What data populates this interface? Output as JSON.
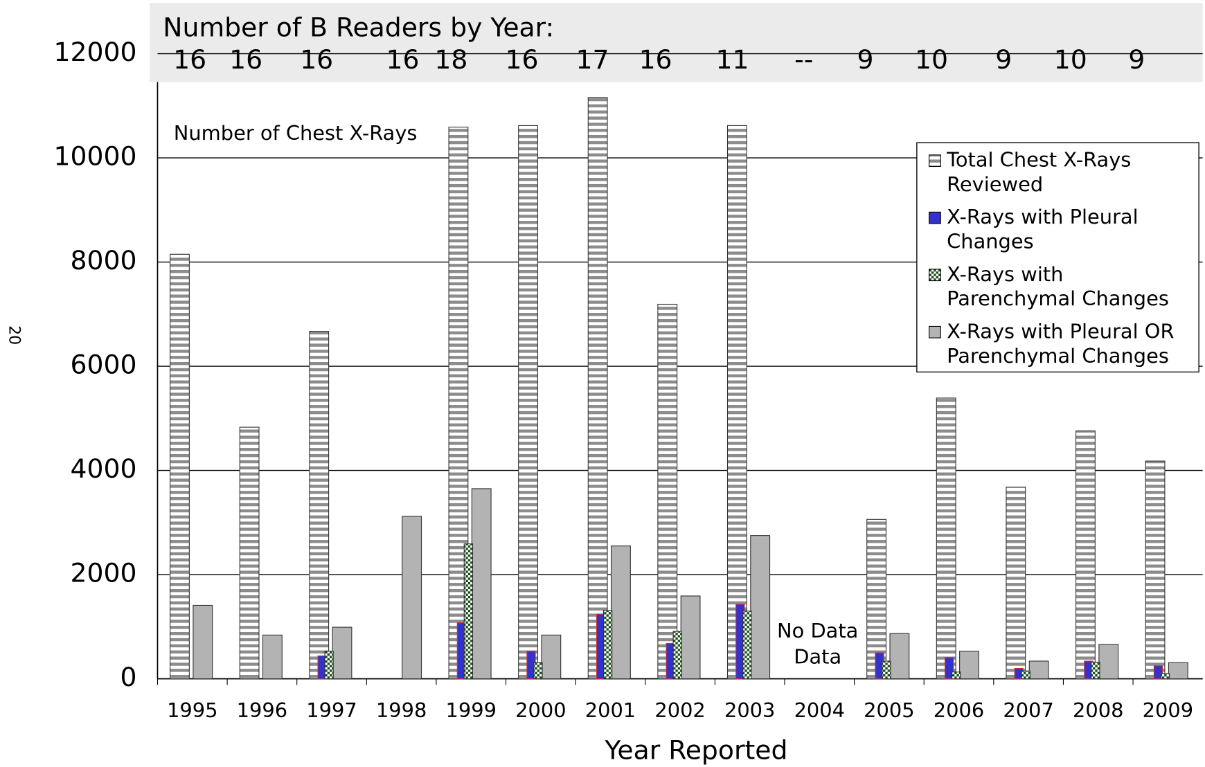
{
  "chart_data": {
    "type": "bar",
    "title": "Number of B Readers by Year:",
    "readers_labels": [
      "16",
      "16",
      "16",
      "16",
      "18",
      "16",
      "17",
      "16",
      "11",
      "--",
      "9",
      "10",
      "9",
      "10",
      "9"
    ],
    "annotations": [
      "Number of Chest X-Rays",
      "No Data",
      "20"
    ],
    "x_label": "Year Reported",
    "categories": [
      "1995",
      "1996",
      "1997",
      "1998",
      "1999",
      "2000",
      "2001",
      "2002",
      "2003",
      "2004",
      "2005",
      "2006",
      "2007",
      "2008",
      "2009"
    ],
    "series": [
      {
        "name": "Total Chest X-Rays Reviewed",
        "color": "#8c8c8c",
        "values": [
          8150,
          4830,
          6670,
          null,
          10590,
          10620,
          11160,
          7190,
          10620,
          null,
          3060,
          5390,
          3680,
          4760,
          4180
        ]
      },
      {
        "name": "X-Rays with Pleural Changes",
        "color": "#3333cc",
        "values": [
          null,
          null,
          440,
          null,
          1075,
          530,
          1240,
          680,
          1430,
          null,
          500,
          410,
          200,
          340,
          250
        ]
      },
      {
        "name": "X-Rays with Parenchymal Changes",
        "color": "#1a4d1a",
        "values": [
          null,
          null,
          530,
          null,
          2590,
          310,
          1310,
          910,
          1300,
          null,
          340,
          130,
          150,
          320,
          100
        ]
      },
      {
        "name": "X-Rays with Pleural OR Parenchymal Changes",
        "color": "#b3b3b3",
        "values": [
          1410,
          840,
          990,
          3120,
          3650,
          840,
          2550,
          1590,
          2750,
          null,
          870,
          530,
          340,
          660,
          310
        ]
      }
    ],
    "ylim": [
      0,
      12000
    ],
    "yticks": [
      0,
      2000,
      4000,
      6000,
      8000,
      10000,
      12000
    ],
    "grid": true
  }
}
